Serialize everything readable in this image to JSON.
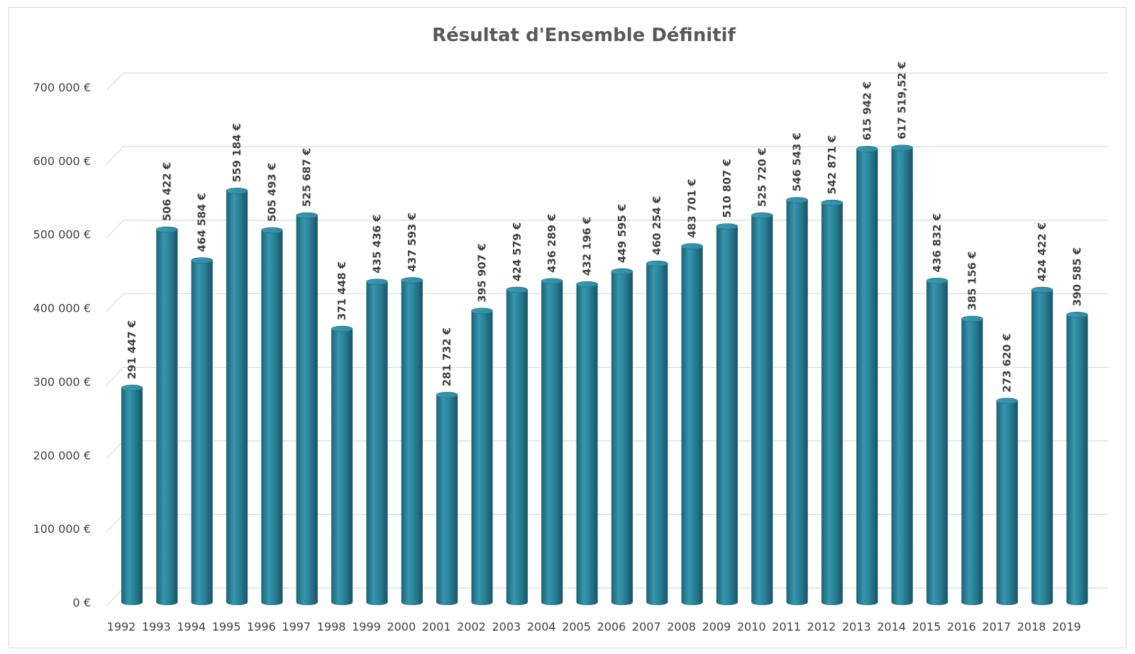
{
  "chart_data": {
    "type": "bar",
    "title": "Résultat d'Ensemble Définitif",
    "xlabel": "",
    "ylabel": "",
    "ylim": [
      0,
      700000
    ],
    "grid": true,
    "legend": "none",
    "bar_color": "#2a7f96",
    "yticks": [
      "0 €",
      "100 000 €",
      "200 000 €",
      "300 000 €",
      "400 000 €",
      "500 000 €",
      "600 000 €",
      "700 000 €"
    ],
    "categories": [
      "1992",
      "1993",
      "1994",
      "1995",
      "1996",
      "1997",
      "1998",
      "1999",
      "2000",
      "2001",
      "2002",
      "2003",
      "2004",
      "2005",
      "2006",
      "2007",
      "2008",
      "2009",
      "2010",
      "2011",
      "2012",
      "2013",
      "2014",
      "2015",
      "2016",
      "2017",
      "2018",
      "2019"
    ],
    "values": [
      291447,
      506422,
      464584,
      559184,
      505493,
      525687,
      371448,
      435436,
      437593,
      281732,
      395907,
      424579,
      436289,
      432196,
      449595,
      460254,
      483701,
      510807,
      525720,
      546543,
      542871,
      615942,
      617519.52,
      436832,
      385156,
      273620,
      424422,
      390585
    ],
    "labels": [
      "291 447 €",
      "506 422 €",
      "464 584 €",
      "559 184 €",
      "505 493 €",
      "525 687 €",
      "371 448 €",
      "435 436 €",
      "437 593 €",
      "281 732 €",
      "395 907 €",
      "424 579 €",
      "436 289 €",
      "432 196 €",
      "449 595 €",
      "460 254 €",
      "483 701 €",
      "510 807 €",
      "525 720 €",
      "546 543 €",
      "542 871 €",
      "615 942 €",
      "617 519,52 €",
      "436 832 €",
      "385 156 €",
      "273 620 €",
      "424 422 €",
      "390 585 €"
    ]
  }
}
